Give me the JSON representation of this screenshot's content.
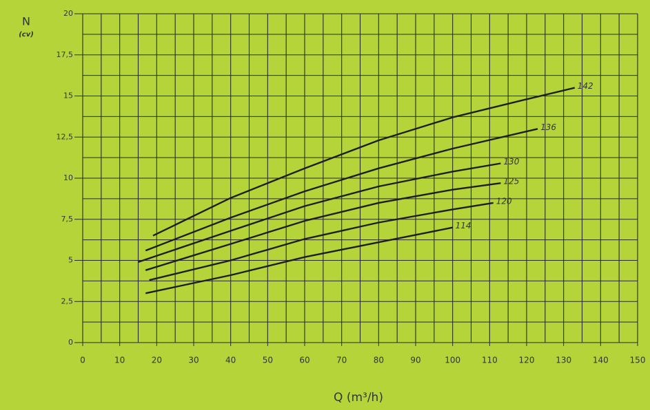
{
  "chart_data": {
    "type": "line",
    "ylabel": "N",
    "ylabel_unit": "(cv)",
    "xlabel": "Q (m³/h)",
    "xlim": [
      0,
      150
    ],
    "xticks": [
      0,
      10,
      20,
      30,
      40,
      50,
      60,
      70,
      80,
      90,
      100,
      110,
      120,
      130,
      140,
      150
    ],
    "ylim": [
      0,
      20
    ],
    "yticks": [
      0,
      {
        "value": 2.5,
        "label": "2,5"
      },
      5,
      {
        "value": 7.5,
        "label": "7,5"
      },
      10,
      {
        "value": 12.5,
        "label": "12,5"
      },
      15,
      {
        "value": 17.5,
        "label": "17,5"
      },
      20
    ],
    "grid": true,
    "series": [
      {
        "name": "142",
        "color": "#1e1e1e",
        "x": [
          19,
          40,
          60,
          80,
          100,
          120,
          133
        ],
        "values": [
          6.5,
          8.8,
          10.6,
          12.3,
          13.7,
          14.8,
          15.5
        ]
      },
      {
        "name": "136",
        "color": "#1e1e1e",
        "x": [
          17,
          40,
          60,
          80,
          100,
          123
        ],
        "values": [
          5.6,
          7.6,
          9.2,
          10.6,
          11.8,
          13.0
        ]
      },
      {
        "name": "130",
        "color": "#1e1e1e",
        "x": [
          15,
          40,
          60,
          80,
          100,
          113
        ],
        "values": [
          4.9,
          6.8,
          8.3,
          9.5,
          10.4,
          10.9
        ]
      },
      {
        "name": "125",
        "color": "#1e1e1e",
        "x": [
          17,
          40,
          60,
          80,
          100,
          113
        ],
        "values": [
          4.4,
          6.0,
          7.4,
          8.5,
          9.3,
          9.7
        ]
      },
      {
        "name": "120",
        "color": "#1e1e1e",
        "x": [
          18,
          40,
          60,
          80,
          100,
          111
        ],
        "values": [
          3.8,
          5.0,
          6.3,
          7.3,
          8.1,
          8.5
        ]
      },
      {
        "name": "114",
        "color": "#1e1e1e",
        "x": [
          17,
          40,
          60,
          80,
          100
        ],
        "values": [
          3.0,
          4.1,
          5.2,
          6.1,
          7.0
        ]
      }
    ]
  }
}
